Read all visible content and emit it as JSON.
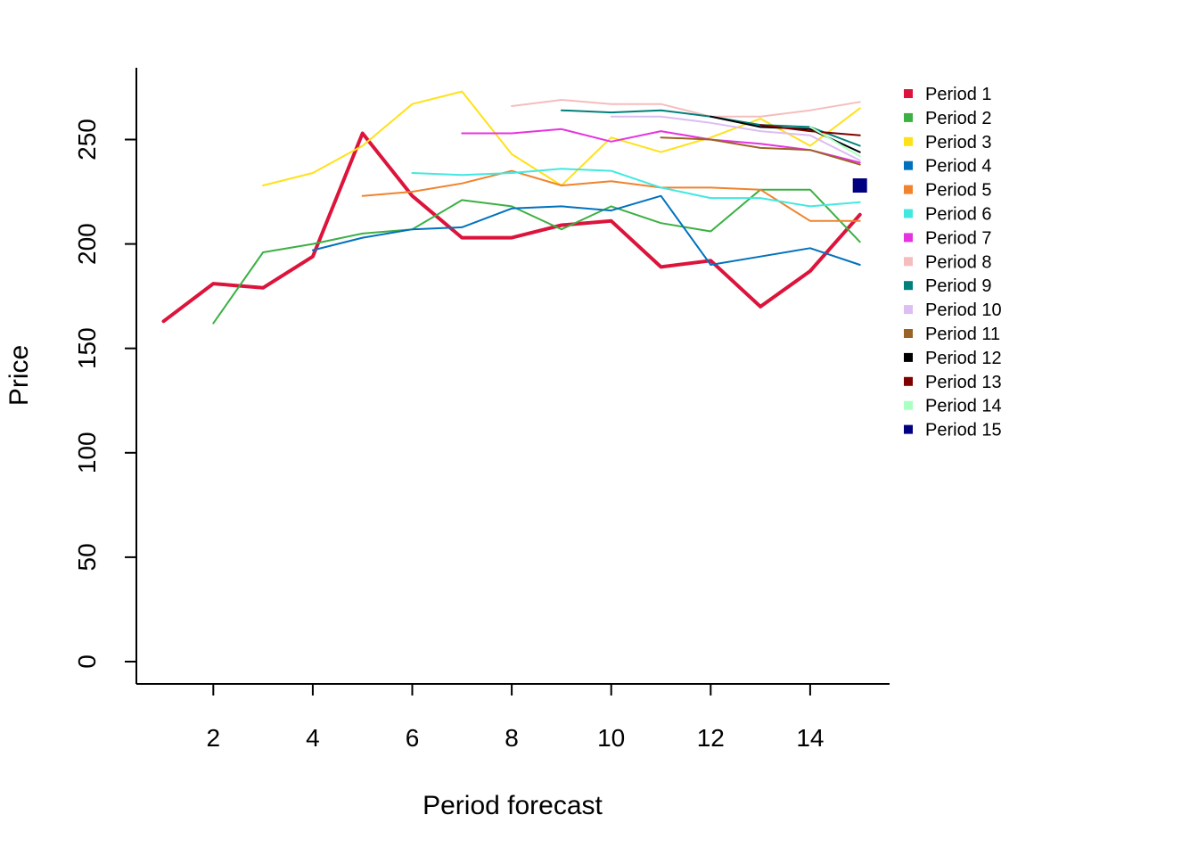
{
  "chart_data": {
    "type": "line",
    "xlabel": "Period forecast",
    "ylabel": "Price",
    "xlim": [
      0.5,
      15.5
    ],
    "ylim": [
      -10,
      285
    ],
    "x_ticks": [
      2,
      4,
      6,
      8,
      10,
      12,
      14
    ],
    "y_ticks": [
      0,
      50,
      100,
      150,
      200,
      250
    ],
    "grid": false,
    "legend_position": "right",
    "series": [
      {
        "name": "Period 1",
        "color": "#DC143C",
        "emphasis": true,
        "x": [
          1,
          2,
          3,
          4,
          5,
          6,
          7,
          8,
          9,
          10,
          11,
          12,
          13,
          14,
          15
        ],
        "y": [
          163,
          181,
          179,
          194,
          253,
          223,
          203,
          203,
          209,
          211,
          189,
          192,
          170,
          187,
          214
        ]
      },
      {
        "name": "Period 2",
        "color": "#3CB043",
        "x": [
          2,
          3,
          4,
          5,
          6,
          7,
          8,
          9,
          10,
          11,
          12,
          13,
          14,
          15
        ],
        "y": [
          162,
          196,
          200,
          205,
          207,
          221,
          218,
          207,
          218,
          210,
          206,
          226,
          226,
          201
        ]
      },
      {
        "name": "Period 3",
        "color": "#FFE119",
        "x": [
          3,
          4,
          5,
          6,
          7,
          8,
          9,
          10,
          11,
          12,
          13,
          14,
          15
        ],
        "y": [
          228,
          234,
          247,
          267,
          273,
          243,
          228,
          251,
          244,
          251,
          260,
          247,
          265
        ]
      },
      {
        "name": "Period 4",
        "color": "#0072BD",
        "x": [
          4,
          5,
          6,
          7,
          8,
          9,
          10,
          11,
          12,
          13,
          14,
          15
        ],
        "y": [
          197,
          203,
          207,
          208,
          217,
          218,
          216,
          223,
          190,
          194,
          198,
          190
        ]
      },
      {
        "name": "Period 5",
        "color": "#F0832D",
        "x": [
          5,
          6,
          7,
          8,
          9,
          10,
          11,
          12,
          13,
          14,
          15
        ],
        "y": [
          223,
          225,
          229,
          235,
          228,
          230,
          227,
          227,
          226,
          211,
          211
        ]
      },
      {
        "name": "Period 6",
        "color": "#42E8E0",
        "x": [
          6,
          7,
          8,
          9,
          10,
          11,
          12,
          13,
          14,
          15
        ],
        "y": [
          234,
          233,
          234,
          236,
          235,
          227,
          222,
          222,
          218,
          220
        ]
      },
      {
        "name": "Period 7",
        "color": "#E633E0",
        "x": [
          7,
          8,
          9,
          10,
          11,
          12,
          13,
          14,
          15
        ],
        "y": [
          253,
          253,
          255,
          249,
          254,
          250,
          248,
          245,
          239
        ]
      },
      {
        "name": "Period 8",
        "color": "#F5BDBD",
        "x": [
          8,
          9,
          10,
          11,
          12,
          13,
          14,
          15
        ],
        "y": [
          266,
          269,
          267,
          267,
          261,
          261,
          264,
          268
        ]
      },
      {
        "name": "Period 9",
        "color": "#00807A",
        "x": [
          9,
          10,
          11,
          12,
          13,
          14,
          15
        ],
        "y": [
          264,
          263,
          264,
          261,
          257,
          256,
          247
        ]
      },
      {
        "name": "Period 10",
        "color": "#DCBEF2",
        "x": [
          10,
          11,
          12,
          13,
          14,
          15
        ],
        "y": [
          261,
          261,
          258,
          254,
          252,
          240
        ]
      },
      {
        "name": "Period 11",
        "color": "#9A6324",
        "x": [
          11,
          12,
          13,
          14,
          15
        ],
        "y": [
          251,
          250,
          246,
          245,
          238
        ]
      },
      {
        "name": "Period 12",
        "color": "#000000",
        "x": [
          12,
          13,
          14,
          15
        ],
        "y": [
          261,
          256,
          255,
          244
        ]
      },
      {
        "name": "Period 13",
        "color": "#800000",
        "x": [
          13,
          14,
          15
        ],
        "y": [
          257,
          254,
          252
        ]
      },
      {
        "name": "Period 14",
        "color": "#AAFFC3",
        "x": [
          14,
          15
        ],
        "y": [
          256,
          242
        ]
      },
      {
        "name": "Period 15",
        "color": "#000080",
        "marker": "square",
        "x": [
          15
        ],
        "y": [
          228
        ]
      }
    ]
  }
}
